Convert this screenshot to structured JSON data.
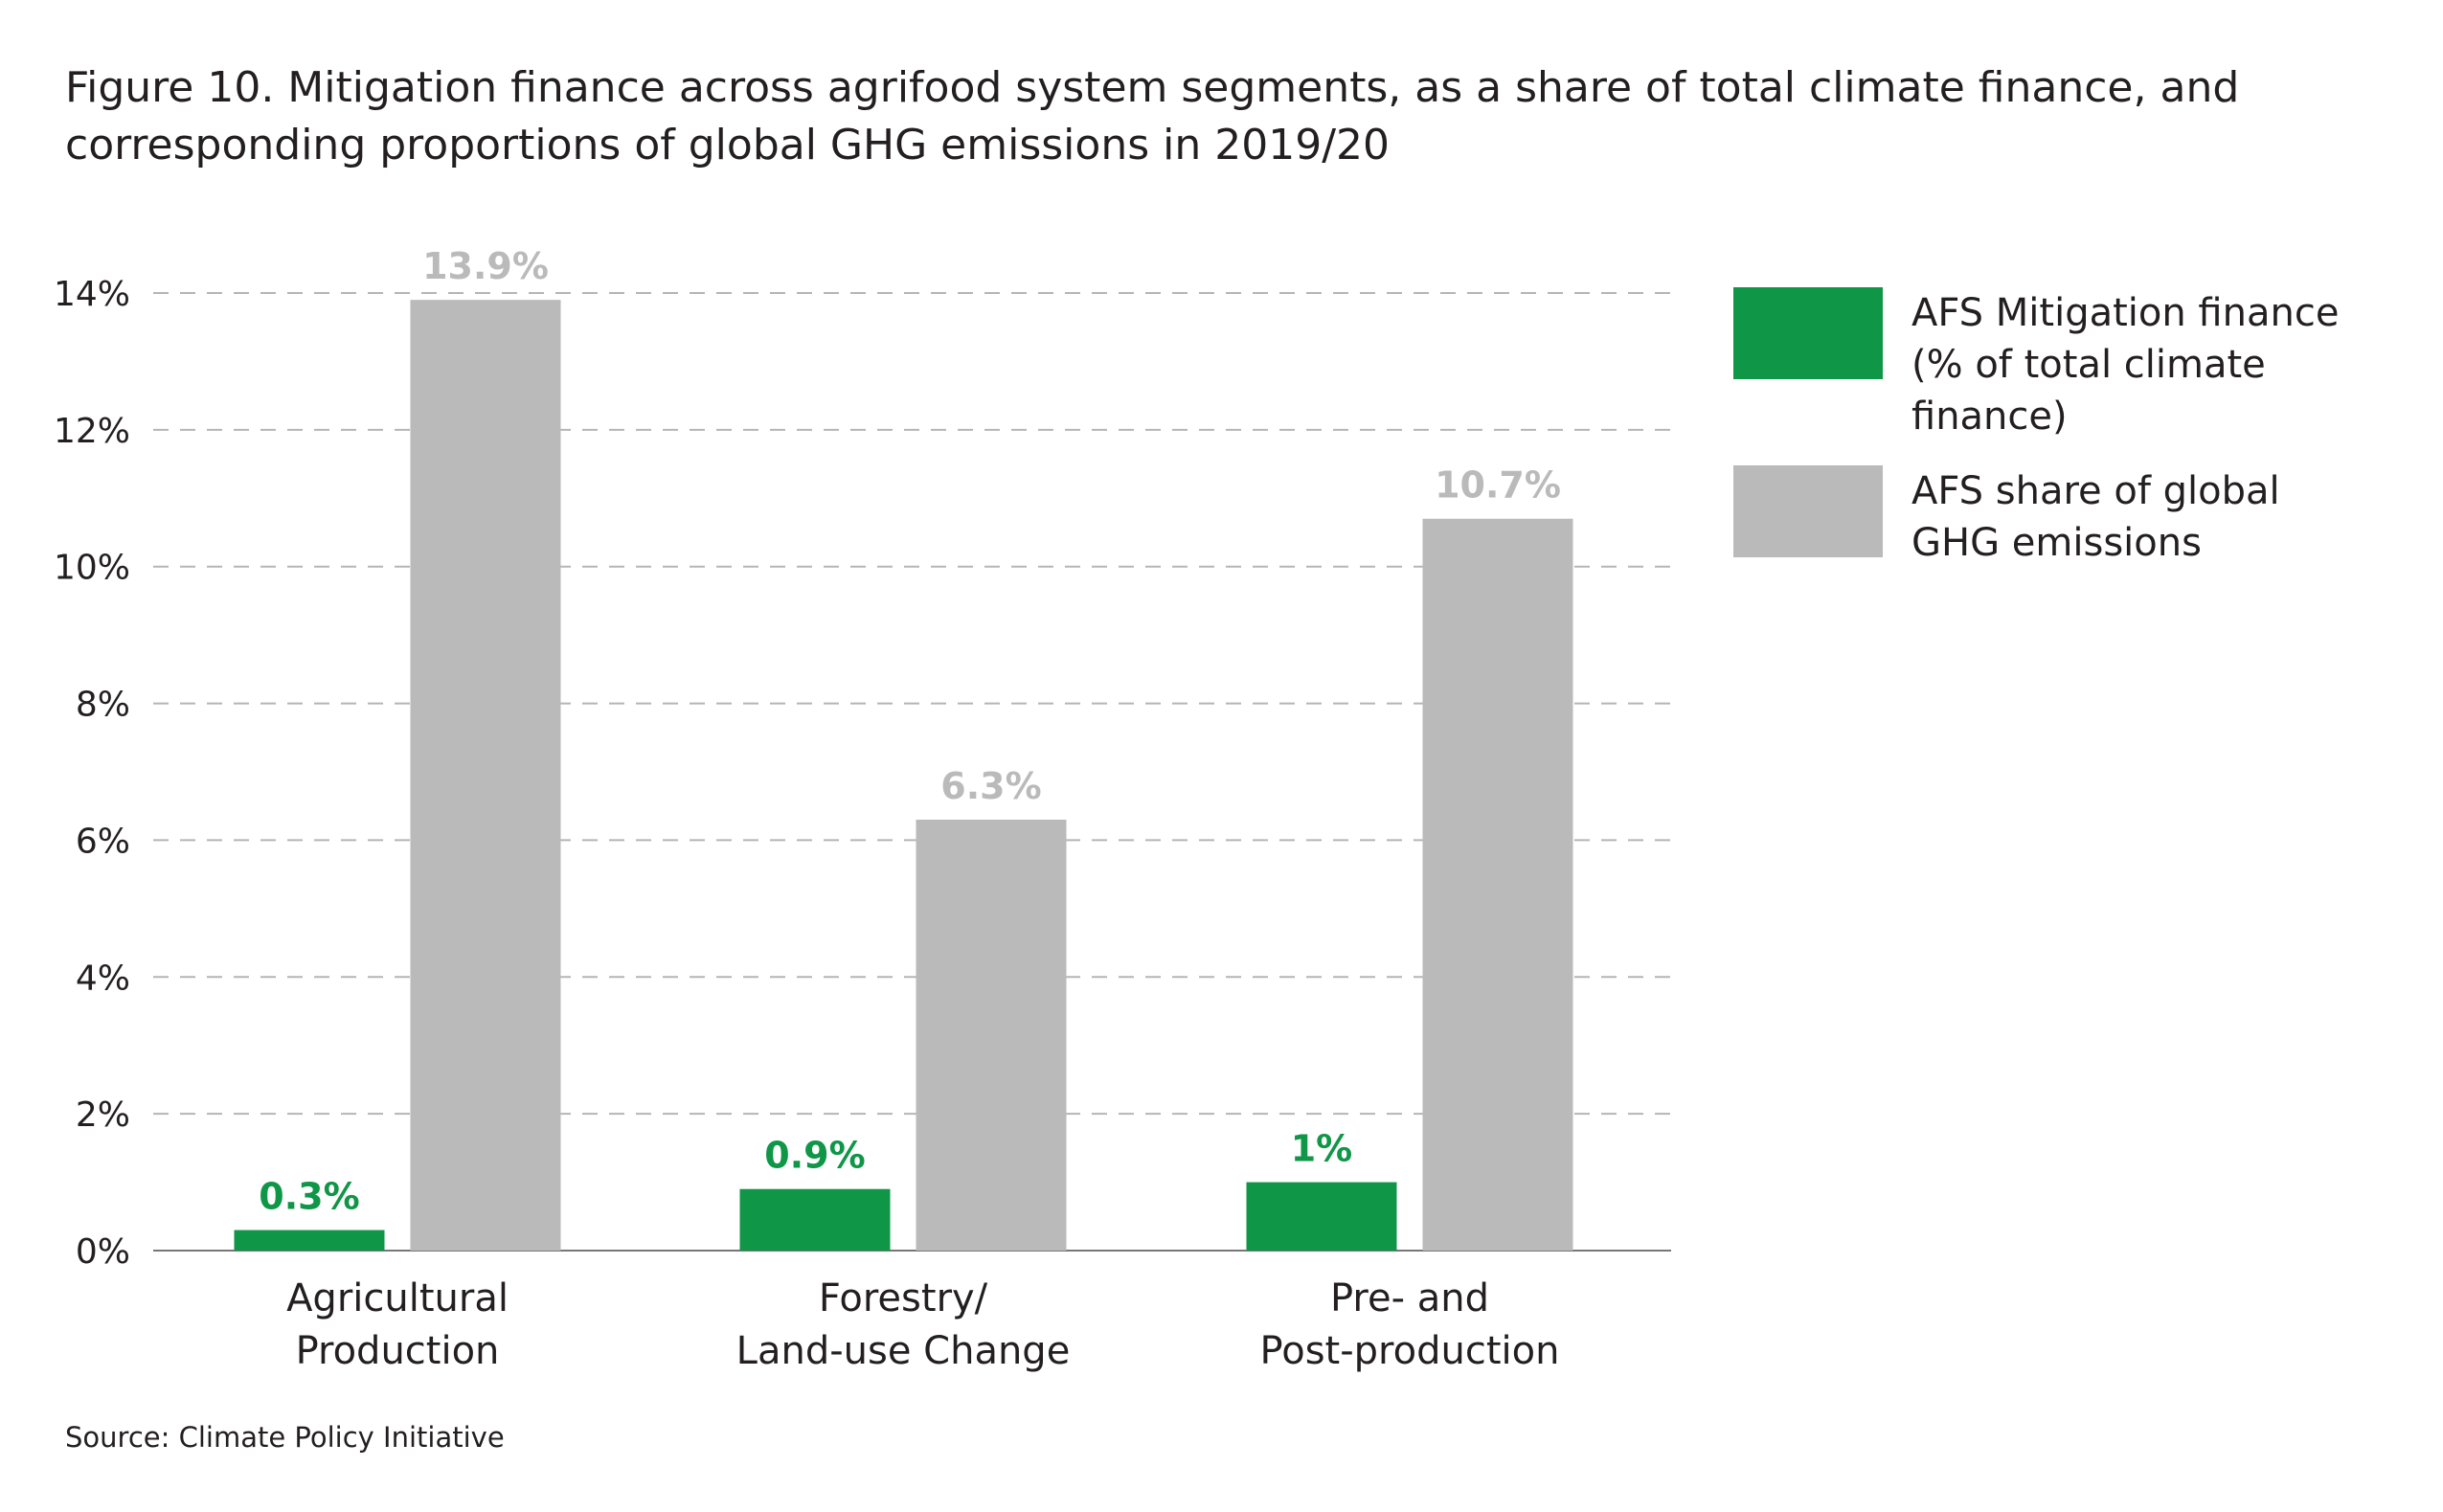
{
  "title_lines": [
    "Figure 10. Mitigation finance across agrifood system segments, as a share of total climate finance, and",
    "corresponding proportions of global GHG emissions in 2019/20"
  ],
  "source": "Source: Climate Policy Initiative",
  "colors": {
    "finance": "#0f9647",
    "emissions": "#bbbabb",
    "grid": "#b5b5b5",
    "tick_text": "#231f20"
  },
  "legend": [
    {
      "lines": [
        "AFS Mitigation finance",
        "(% of total climate finance)"
      ],
      "color": "#0f9647"
    },
    {
      "lines": [
        "AFS share of global",
        "GHG emissions"
      ],
      "color": "#bbbabb"
    }
  ],
  "chart_data": {
    "type": "bar",
    "categories": [
      [
        "Agricultural",
        "Production"
      ],
      [
        "Forestry/",
        "Land-use Change"
      ],
      [
        "Pre- and",
        "Post-production"
      ]
    ],
    "series": [
      {
        "name": "AFS Mitigation finance (% of total climate finance)",
        "values": [
          0.3,
          0.9,
          1.0
        ],
        "labels": [
          "0.3%",
          "0.9%",
          "1%"
        ],
        "color": "#0f9647"
      },
      {
        "name": "AFS share of global GHG emissions",
        "values": [
          13.9,
          6.3,
          10.7
        ],
        "labels": [
          "13.9%",
          "6.3%",
          "10.7%"
        ],
        "color": "#bbbabb"
      }
    ],
    "ylim": [
      0,
      14
    ],
    "yticks": [
      0,
      2,
      4,
      6,
      8,
      10,
      12,
      14
    ],
    "ytick_labels": [
      "0%",
      "2%",
      "4%",
      "6%",
      "8%",
      "10%",
      "12%",
      "14%"
    ],
    "grid": true,
    "legend_position": "right"
  }
}
